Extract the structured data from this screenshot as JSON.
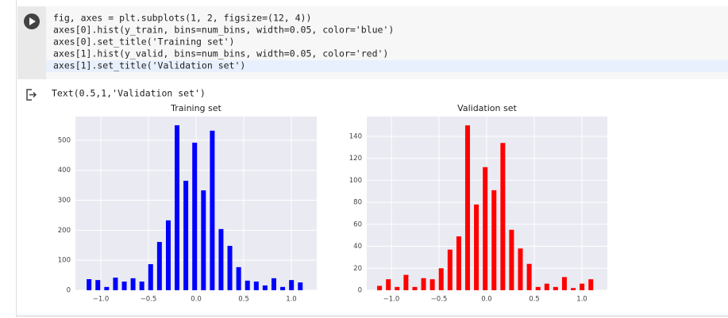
{
  "code": [
    "fig, axes = plt.subplots(1, 2, figsize=(12, 4))",
    "axes[0].hist(y_train, bins=num_bins, width=0.05, color='blue')",
    "axes[0].set_title('Training set')",
    "axes[1].hist(y_valid, bins=num_bins, width=0.05, color='red')",
    "axes[1].set_title('Validation set')"
  ],
  "output_text": "Text(0.5,1,'Validation set')",
  "chart_data": [
    {
      "type": "histogram",
      "title": "Training set",
      "color": "blue",
      "bar_width": 0.05,
      "grid": true,
      "bins": [
        -1.17,
        -1.078,
        -0.985,
        -0.893,
        -0.8,
        -0.708,
        -0.616,
        -0.523,
        -0.431,
        -0.338,
        -0.246,
        -0.154,
        -0.061,
        0.031,
        0.124,
        0.216,
        0.308,
        0.401,
        0.493,
        0.586,
        0.678,
        0.77,
        0.863,
        0.955,
        1.048,
        1.14
      ],
      "values": [
        37,
        34,
        11,
        42,
        29,
        40,
        29,
        87,
        161,
        233,
        550,
        365,
        492,
        333,
        532,
        204,
        148,
        77,
        32,
        29,
        16,
        40,
        11,
        34,
        26
      ],
      "xlim": [
        -1.267,
        1.267
      ],
      "ylim": [
        0,
        579
      ],
      "xticks": [
        {
          "value": -1.0,
          "label": "−1.0"
        },
        {
          "value": -0.5,
          "label": "−0.5"
        },
        {
          "value": 0.0,
          "label": "0.0"
        },
        {
          "value": 0.5,
          "label": "0.5"
        },
        {
          "value": 1.0,
          "label": "1.0"
        }
      ],
      "yticks": [
        0,
        100,
        200,
        300,
        400,
        500
      ]
    },
    {
      "type": "histogram",
      "title": "Validation set",
      "color": "red",
      "bar_width": 0.05,
      "grid": true,
      "bins": [
        -1.17,
        -1.078,
        -0.985,
        -0.893,
        -0.8,
        -0.708,
        -0.616,
        -0.523,
        -0.431,
        -0.338,
        -0.246,
        -0.154,
        -0.061,
        0.031,
        0.124,
        0.216,
        0.308,
        0.401,
        0.493,
        0.586,
        0.678,
        0.77,
        0.863,
        0.955,
        1.048,
        1.14
      ],
      "values": [
        4,
        10,
        3,
        14,
        3,
        11,
        10,
        20,
        37,
        49,
        150,
        78,
        112,
        91,
        134,
        55,
        38,
        24,
        3,
        6,
        3,
        12,
        2,
        6,
        10
      ],
      "xlim": [
        -1.258,
        1.267
      ],
      "ylim": [
        0,
        158
      ],
      "xticks": [
        {
          "value": -1.0,
          "label": "−1.0"
        },
        {
          "value": -0.5,
          "label": "−0.5"
        },
        {
          "value": 0.0,
          "label": "0.0"
        },
        {
          "value": 0.5,
          "label": "0.5"
        },
        {
          "value": 1.0,
          "label": "1.0"
        }
      ],
      "yticks": [
        0,
        20,
        40,
        60,
        80,
        100,
        120,
        140
      ]
    }
  ]
}
